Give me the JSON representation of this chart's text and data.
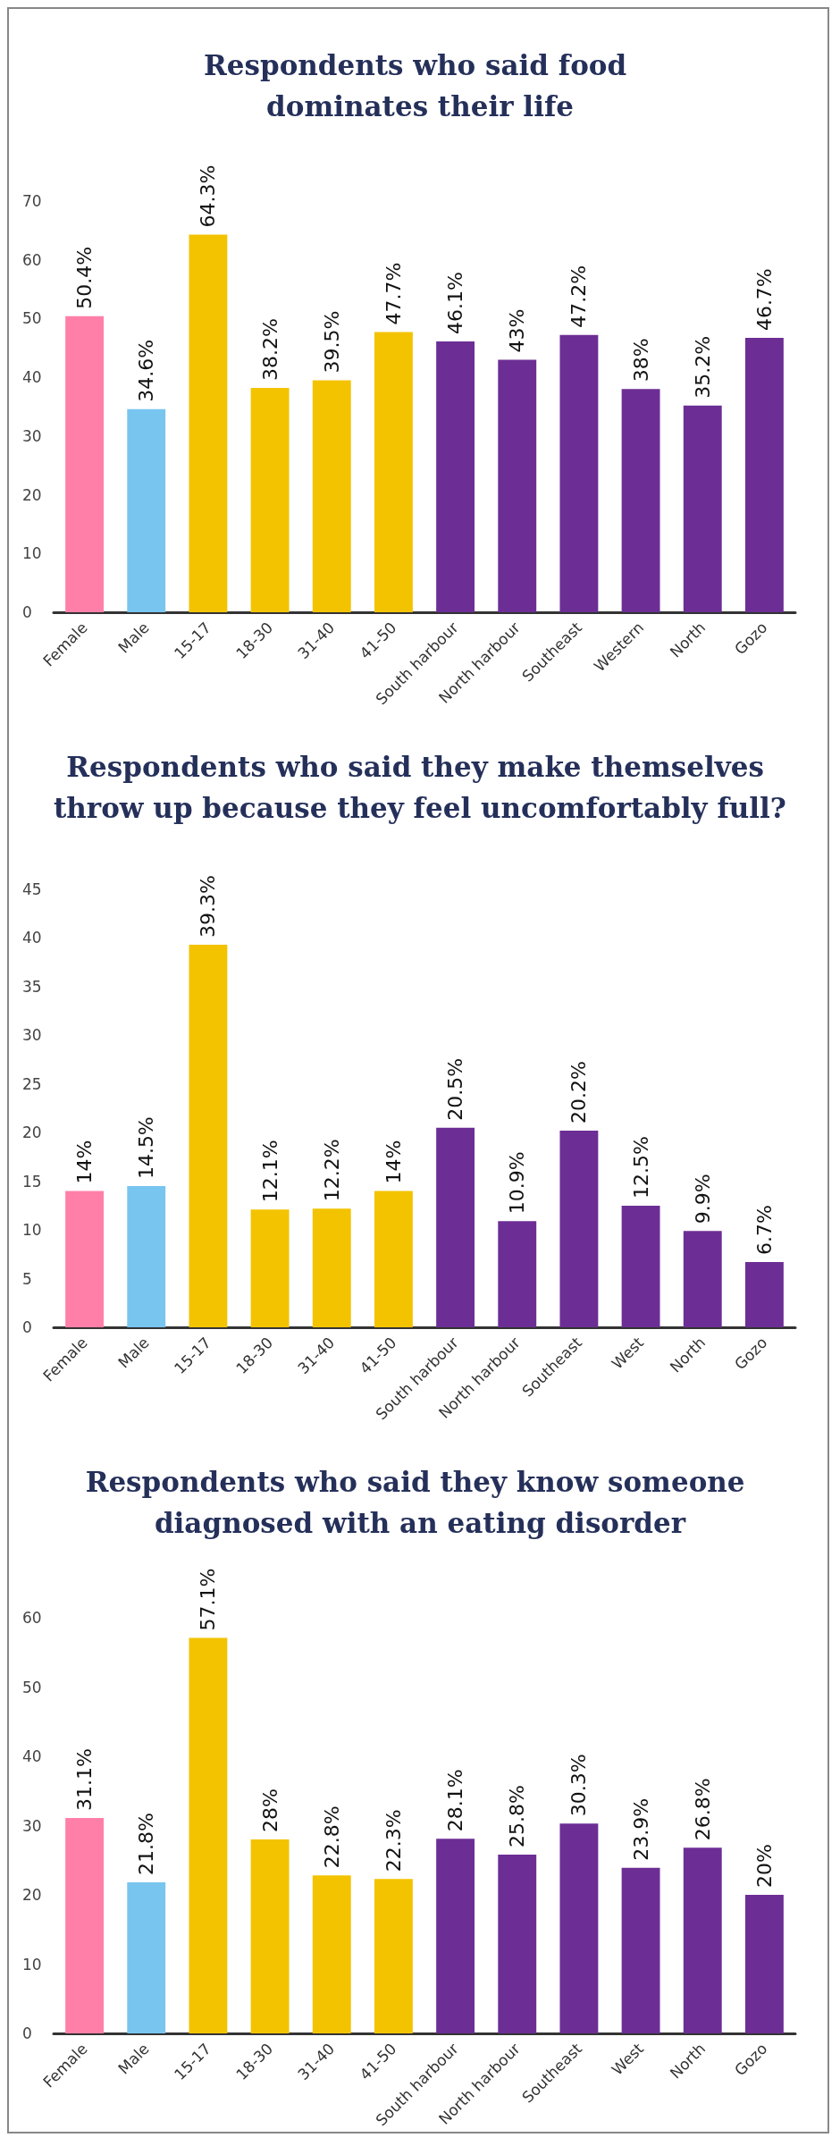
{
  "chart_data": [
    {
      "type": "bar",
      "title": "Respondents who said food dominates their life",
      "categories": [
        "Female",
        "Male",
        "15-17",
        "18-30",
        "31-40",
        "41-50",
        "South harbour",
        "North harbour",
        "Southeast",
        "Western",
        "North",
        "Gozo"
      ],
      "values": [
        50.4,
        34.6,
        64.3,
        38.2,
        39.5,
        47.7,
        46.1,
        43,
        47.2,
        38,
        35.2,
        46.7
      ],
      "value_labels": [
        "50.4%",
        "34.6%",
        "64.3%",
        "38.2%",
        "39.5%",
        "47.7%",
        "46.1%",
        "43%",
        "47.2%",
        "38%",
        "35.2%",
        "46.7%"
      ],
      "colors": [
        "#ff7fa8",
        "#78c5f0",
        "#f3c300",
        "#f3c300",
        "#f3c300",
        "#f3c300",
        "#6c2e95",
        "#6c2e95",
        "#6c2e95",
        "#6c2e95",
        "#6c2e95",
        "#6c2e95"
      ],
      "ylim": [
        0,
        70
      ],
      "yticks": [
        0,
        10,
        20,
        30,
        40,
        50,
        60,
        70
      ],
      "grid": false
    },
    {
      "type": "bar",
      "title": "Respondents who said they make themselves throw up because they feel uncomfortably full?",
      "categories": [
        "Female",
        "Male",
        "15-17",
        "18-30",
        "31-40",
        "41-50",
        "South harbour",
        "North harbour",
        "Southeast",
        "West",
        "North",
        "Gozo"
      ],
      "values": [
        14,
        14.5,
        39.3,
        12.1,
        12.2,
        14,
        20.5,
        10.9,
        20.2,
        12.5,
        9.9,
        6.7
      ],
      "value_labels": [
        "14%",
        "14.5%",
        "39.3%",
        "12.1%",
        "12.2%",
        "14%",
        "20.5%",
        "10.9%",
        "20.2%",
        "12.5%",
        "9.9%",
        "6.7%"
      ],
      "colors": [
        "#ff7fa8",
        "#78c5f0",
        "#f3c300",
        "#f3c300",
        "#f3c300",
        "#f3c300",
        "#6c2e95",
        "#6c2e95",
        "#6c2e95",
        "#6c2e95",
        "#6c2e95",
        "#6c2e95"
      ],
      "ylim": [
        0,
        45
      ],
      "yticks": [
        0,
        5,
        10,
        15,
        20,
        25,
        30,
        35,
        40,
        45
      ],
      "grid": false
    },
    {
      "type": "bar",
      "title": "Respondents who said they know someone diagnosed with an eating disorder",
      "categories": [
        "Female",
        "Male",
        "15-17",
        "18-30",
        "31-40",
        "41-50",
        "South harbour",
        "North harbour",
        "Southeast",
        "West",
        "North",
        "Gozo"
      ],
      "values": [
        31.1,
        21.8,
        57.1,
        28,
        22.8,
        22.3,
        28.1,
        25.8,
        30.3,
        23.9,
        26.8,
        20
      ],
      "value_labels": [
        "31.1%",
        "21.8%",
        "57.1%",
        "28%",
        "22.8%",
        "22.3%",
        "28.1%",
        "25.8%",
        "30.3%",
        "23.9%",
        "26.8%",
        "20%"
      ],
      "colors": [
        "#ff7fa8",
        "#78c5f0",
        "#f3c300",
        "#f3c300",
        "#f3c300",
        "#f3c300",
        "#6c2e95",
        "#6c2e95",
        "#6c2e95",
        "#6c2e95",
        "#6c2e95",
        "#6c2e95"
      ],
      "ylim": [
        0,
        60
      ],
      "yticks": [
        0,
        10,
        20,
        30,
        40,
        50,
        60
      ],
      "grid": false
    }
  ]
}
